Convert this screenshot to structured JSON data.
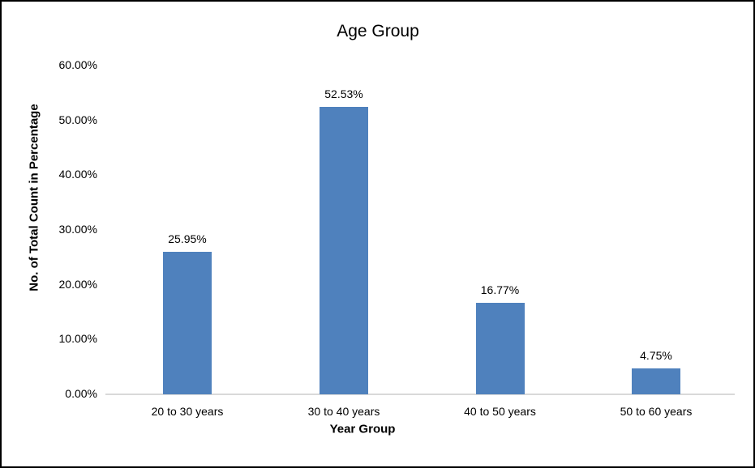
{
  "chart_data": {
    "type": "bar",
    "title": "Age Group",
    "xlabel": "Year Group",
    "ylabel": "No. of Total Count in Percentage",
    "categories": [
      "20 to 30 years",
      "30 to 40 years",
      "40 to 50 years",
      "50 to 60 years"
    ],
    "values": [
      25.95,
      52.53,
      16.77,
      4.75
    ],
    "value_labels": [
      "25.95%",
      "52.53%",
      "16.77%",
      "4.75%"
    ],
    "y_tick_labels": [
      "0.00%",
      "10.00%",
      "20.00%",
      "30.00%",
      "40.00%",
      "50.00%",
      "60.00%"
    ],
    "ylim": [
      0,
      60
    ],
    "y_tick_step": 10,
    "bar_color": "#4f81bd",
    "baseline_color": "#d9d9d9",
    "text_color": "#000000",
    "background_color": "#ffffff",
    "grid": false,
    "legend": null
  }
}
